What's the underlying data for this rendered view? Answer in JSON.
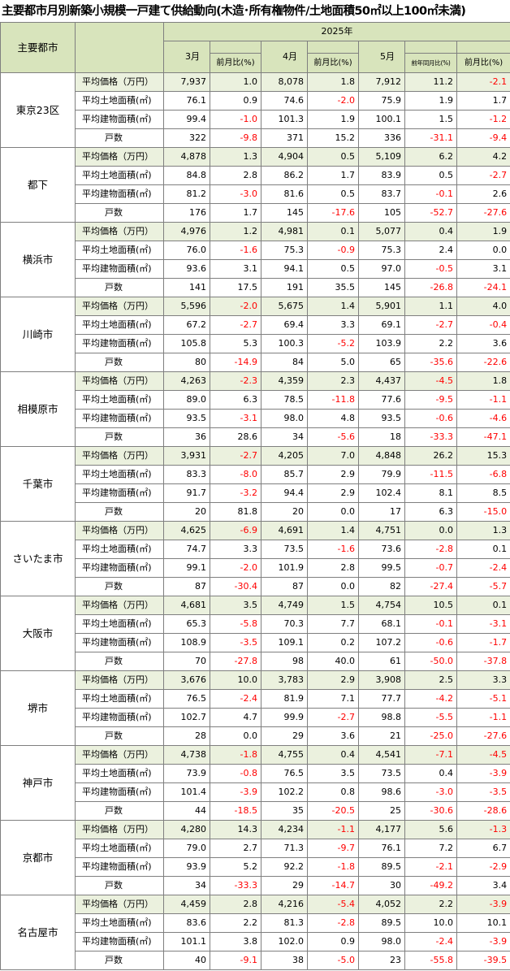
{
  "title": "主要都市月別新築小規模一戸建て供給動向(木造･所有権物件/土地面積50㎡以上100㎡未満)",
  "header": {
    "city_label": "主要都市",
    "year": "2025年",
    "months": [
      "3月",
      "4月",
      "5月"
    ],
    "mom": "前月比(%)",
    "yoy": "前年同月比(%)"
  },
  "row_labels": [
    "平均価格（万円）",
    "平均土地面積(㎡)",
    "平均建物面積(㎡)",
    "戸数"
  ],
  "cities": [
    {
      "name": "東京23区",
      "rows": [
        [
          "7,937",
          "1.0",
          "8,078",
          "1.8",
          "7,912",
          "11.2",
          "-2.1"
        ],
        [
          "76.1",
          "0.9",
          "74.6",
          "-2.0",
          "75.9",
          "1.9",
          "1.7"
        ],
        [
          "99.4",
          "-1.0",
          "101.3",
          "1.9",
          "100.1",
          "1.5",
          "-1.2"
        ],
        [
          "322",
          "-9.8",
          "371",
          "15.2",
          "336",
          "-31.1",
          "-9.4"
        ]
      ]
    },
    {
      "name": "都下",
      "rows": [
        [
          "4,878",
          "1.3",
          "4,904",
          "0.5",
          "5,109",
          "6.2",
          "4.2"
        ],
        [
          "84.8",
          "2.8",
          "86.2",
          "1.7",
          "83.9",
          "0.5",
          "-2.7"
        ],
        [
          "81.2",
          "-3.0",
          "81.6",
          "0.5",
          "83.7",
          "-0.1",
          "2.6"
        ],
        [
          "176",
          "1.7",
          "145",
          "-17.6",
          "105",
          "-52.7",
          "-27.6"
        ]
      ]
    },
    {
      "name": "横浜市",
      "rows": [
        [
          "4,976",
          "1.2",
          "4,981",
          "0.1",
          "5,077",
          "0.4",
          "1.9"
        ],
        [
          "76.0",
          "-1.6",
          "75.3",
          "-0.9",
          "75.3",
          "2.4",
          "0.0"
        ],
        [
          "93.6",
          "3.1",
          "94.1",
          "0.5",
          "97.0",
          "-0.5",
          "3.1"
        ],
        [
          "141",
          "17.5",
          "191",
          "35.5",
          "145",
          "-26.8",
          "-24.1"
        ]
      ]
    },
    {
      "name": "川崎市",
      "rows": [
        [
          "5,596",
          "-2.0",
          "5,675",
          "1.4",
          "5,901",
          "1.1",
          "4.0"
        ],
        [
          "67.2",
          "-2.7",
          "69.4",
          "3.3",
          "69.1",
          "-2.7",
          "-0.4"
        ],
        [
          "105.8",
          "5.3",
          "100.3",
          "-5.2",
          "103.9",
          "2.2",
          "3.6"
        ],
        [
          "80",
          "-14.9",
          "84",
          "5.0",
          "65",
          "-35.6",
          "-22.6"
        ]
      ]
    },
    {
      "name": "相模原市",
      "rows": [
        [
          "4,263",
          "-2.3",
          "4,359",
          "2.3",
          "4,437",
          "-4.5",
          "1.8"
        ],
        [
          "89.0",
          "6.3",
          "78.5",
          "-11.8",
          "77.6",
          "-9.5",
          "-1.1"
        ],
        [
          "93.5",
          "-3.1",
          "98.0",
          "4.8",
          "93.5",
          "-0.6",
          "-4.6"
        ],
        [
          "36",
          "28.6",
          "34",
          "-5.6",
          "18",
          "-33.3",
          "-47.1"
        ]
      ]
    },
    {
      "name": "千葉市",
      "rows": [
        [
          "3,931",
          "-2.7",
          "4,205",
          "7.0",
          "4,848",
          "26.2",
          "15.3"
        ],
        [
          "83.3",
          "-8.0",
          "85.7",
          "2.9",
          "79.9",
          "-11.5",
          "-6.8"
        ],
        [
          "91.7",
          "-3.2",
          "94.4",
          "2.9",
          "102.4",
          "8.1",
          "8.5"
        ],
        [
          "20",
          "81.8",
          "20",
          "0.0",
          "17",
          "6.3",
          "-15.0"
        ]
      ]
    },
    {
      "name": "さいたま市",
      "rows": [
        [
          "4,625",
          "-6.9",
          "4,691",
          "1.4",
          "4,751",
          "0.0",
          "1.3"
        ],
        [
          "74.7",
          "3.3",
          "73.5",
          "-1.6",
          "73.6",
          "-2.8",
          "0.1"
        ],
        [
          "99.1",
          "-2.0",
          "101.9",
          "2.8",
          "99.5",
          "-0.7",
          "-2.4"
        ],
        [
          "87",
          "-30.4",
          "87",
          "0.0",
          "82",
          "-27.4",
          "-5.7"
        ]
      ]
    },
    {
      "name": "大阪市",
      "rows": [
        [
          "4,681",
          "3.5",
          "4,749",
          "1.5",
          "4,754",
          "10.5",
          "0.1"
        ],
        [
          "65.3",
          "-5.8",
          "70.3",
          "7.7",
          "68.1",
          "-0.1",
          "-3.1"
        ],
        [
          "108.9",
          "-3.5",
          "109.1",
          "0.2",
          "107.2",
          "-0.6",
          "-1.7"
        ],
        [
          "70",
          "-27.8",
          "98",
          "40.0",
          "61",
          "-50.0",
          "-37.8"
        ]
      ]
    },
    {
      "name": "堺市",
      "rows": [
        [
          "3,676",
          "10.0",
          "3,783",
          "2.9",
          "3,908",
          "2.5",
          "3.3"
        ],
        [
          "76.5",
          "-2.4",
          "81.9",
          "7.1",
          "77.7",
          "-4.2",
          "-5.1"
        ],
        [
          "102.7",
          "4.7",
          "99.9",
          "-2.7",
          "98.8",
          "-5.5",
          "-1.1"
        ],
        [
          "28",
          "0.0",
          "29",
          "3.6",
          "21",
          "-25.0",
          "-27.6"
        ]
      ]
    },
    {
      "name": "神戸市",
      "rows": [
        [
          "4,738",
          "-1.8",
          "4,755",
          "0.4",
          "4,541",
          "-7.1",
          "-4.5"
        ],
        [
          "73.9",
          "-0.8",
          "76.5",
          "3.5",
          "73.5",
          "0.4",
          "-3.9"
        ],
        [
          "101.4",
          "-3.9",
          "102.2",
          "0.8",
          "98.6",
          "-3.0",
          "-3.5"
        ],
        [
          "44",
          "-18.5",
          "35",
          "-20.5",
          "25",
          "-30.6",
          "-28.6"
        ]
      ]
    },
    {
      "name": "京都市",
      "rows": [
        [
          "4,280",
          "14.3",
          "4,234",
          "-1.1",
          "4,177",
          "5.6",
          "-1.3"
        ],
        [
          "79.0",
          "2.7",
          "71.3",
          "-9.7",
          "76.1",
          "7.2",
          "6.7"
        ],
        [
          "93.9",
          "5.2",
          "92.2",
          "-1.8",
          "89.5",
          "-2.1",
          "-2.9"
        ],
        [
          "34",
          "-33.3",
          "29",
          "-14.7",
          "30",
          "-49.2",
          "3.4"
        ]
      ]
    },
    {
      "name": "名古屋市",
      "rows": [
        [
          "4,459",
          "2.8",
          "4,216",
          "-5.4",
          "4,052",
          "2.2",
          "-3.9"
        ],
        [
          "83.6",
          "2.2",
          "81.3",
          "-2.8",
          "89.5",
          "10.0",
          "10.1"
        ],
        [
          "101.1",
          "3.8",
          "102.0",
          "0.9",
          "98.0",
          "-2.4",
          "-3.9"
        ],
        [
          "40",
          "-9.1",
          "38",
          "-5.0",
          "23",
          "-55.8",
          "-39.5"
        ]
      ]
    }
  ]
}
